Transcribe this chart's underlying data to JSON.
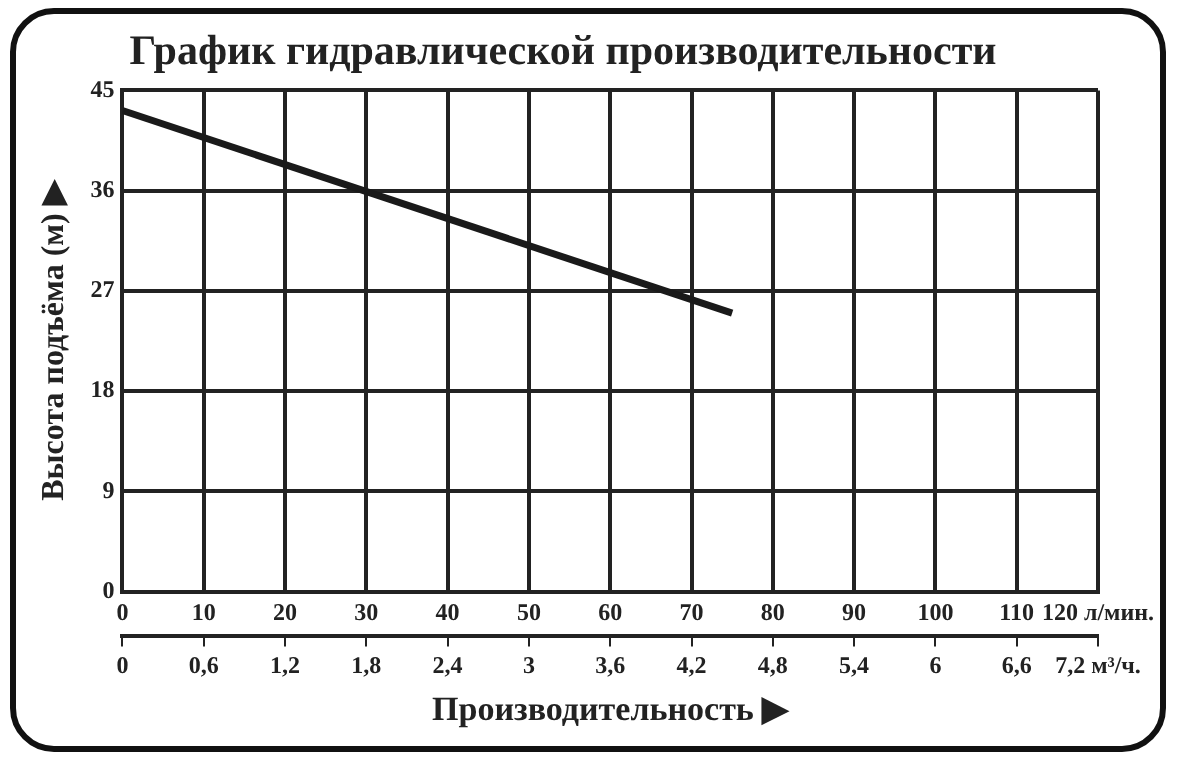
{
  "chart_data": {
    "type": "line",
    "title": "График гидравлической производительности",
    "xlabel": "Производительность ▶",
    "ylabel": "Высота подъёма (м) ▶",
    "x": [
      0,
      75
    ],
    "series": [
      {
        "color": "#1a1a1a",
        "values": [
          43.2,
          25
        ]
      }
    ],
    "xlim": [
      0,
      120
    ],
    "xticks": [
      0,
      10,
      20,
      30,
      40,
      50,
      60,
      70,
      80,
      90,
      100,
      110,
      {
        "value": 120,
        "label": "120 л/мин."
      }
    ],
    "x2lim": [
      0,
      7.2
    ],
    "x2ticks": [
      0,
      {
        "value": 0.6,
        "label": "0,6"
      },
      {
        "value": 1.2,
        "label": "1,2"
      },
      {
        "value": 1.8,
        "label": "1,8"
      },
      {
        "value": 2.4,
        "label": "2,4"
      },
      3,
      {
        "value": 3.6,
        "label": "3,6"
      },
      {
        "value": 4.2,
        "label": "4,2"
      },
      {
        "value": 4.8,
        "label": "4,8"
      },
      {
        "value": 5.4,
        "label": "5,4"
      },
      6,
      {
        "value": 6.6,
        "label": "6,6"
      },
      {
        "value": 7.2,
        "label": "7,2 м³/ч."
      }
    ],
    "ylim": [
      0,
      45
    ],
    "yticks": [
      0,
      9,
      18,
      27,
      36,
      45
    ],
    "grid": true,
    "legend": false,
    "marker": "none",
    "line_style": "solid"
  }
}
